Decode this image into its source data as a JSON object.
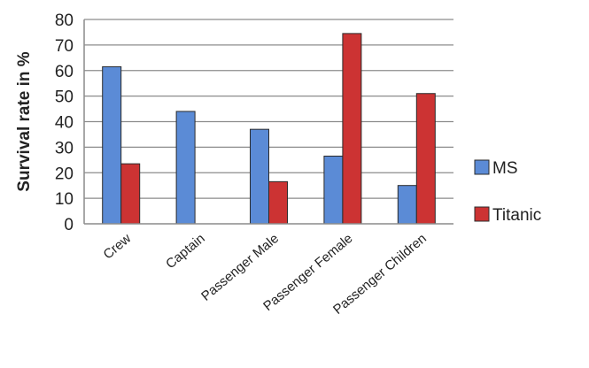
{
  "chart_data": {
    "type": "bar",
    "title": "",
    "xlabel": "",
    "ylabel": "Survival rate in %",
    "ylim": [
      0,
      80
    ],
    "yticks": [
      0,
      10,
      20,
      30,
      40,
      50,
      60,
      70,
      80
    ],
    "grid": true,
    "legend_position": "right",
    "categories": [
      "Crew",
      "Captain",
      "Passenger Male",
      "Passenger Female",
      "Passenger Children"
    ],
    "series": [
      {
        "name": "MS",
        "color": "#5b8bd6",
        "values": [
          61.5,
          44,
          37,
          26.5,
          15
        ]
      },
      {
        "name": "Titanic",
        "color": "#cc3333",
        "values": [
          23.5,
          null,
          16.5,
          74.5,
          51
        ]
      }
    ]
  }
}
